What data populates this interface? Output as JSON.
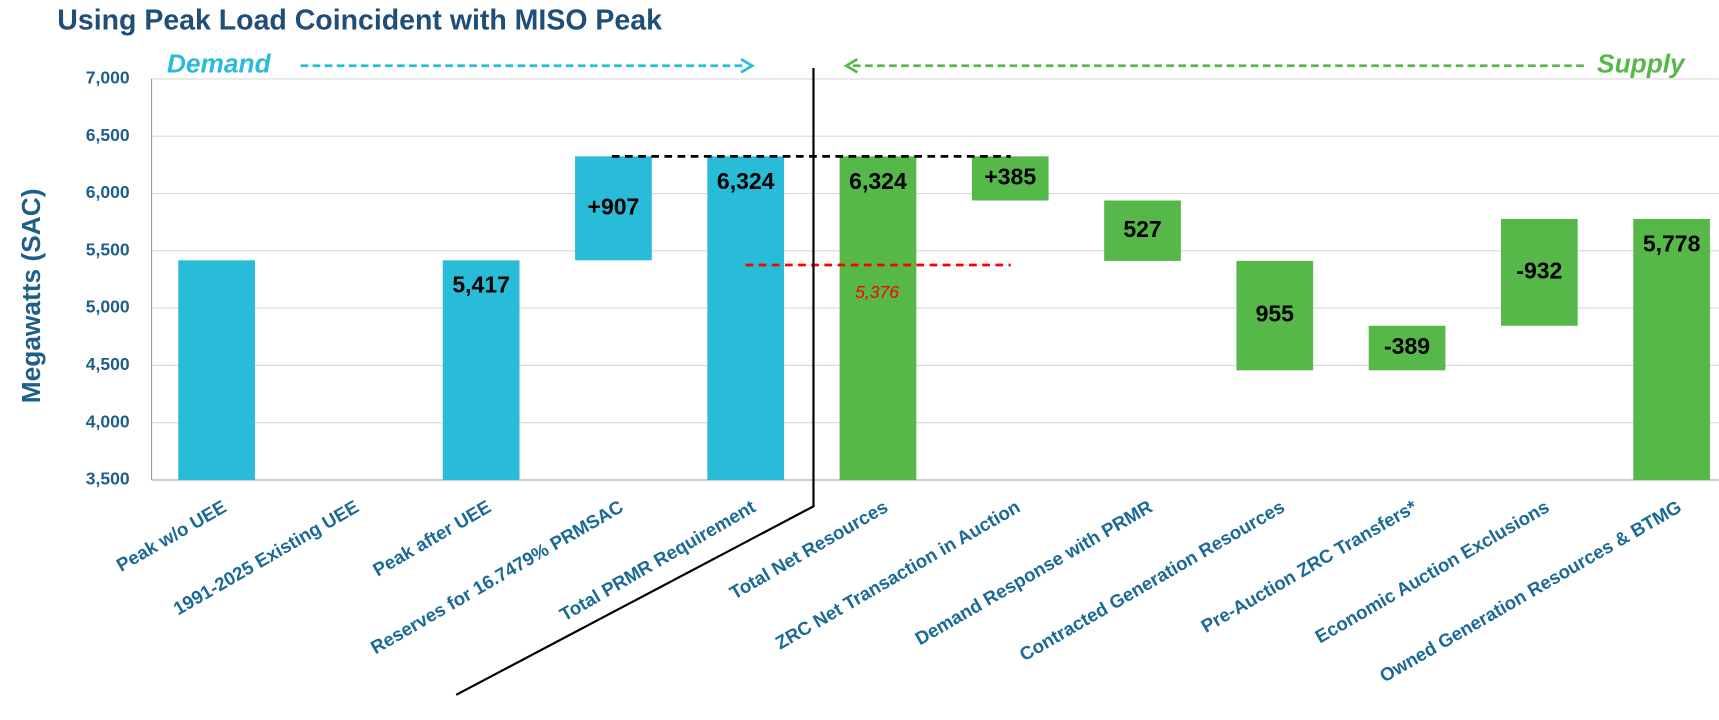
{
  "chart_data": {
    "type": "waterfall",
    "title": "Using Peak Load Coincident with MISO Peak",
    "y_label": "Megawatts (SAC)",
    "categories": [
      "Peak w/o UEE",
      "1991-2025 Existing UEE",
      "Peak after UEE",
      "Reserves for 16.7479% PRMSAC",
      "Total PRMR Requirement",
      "Total Net Resources",
      "ZRC Net Transaction in Auction",
      "Demand Response with PRMR",
      "Contracted Generation Resources",
      "Pre-Auction ZRC Transfers*",
      "Economic Auction Exclusions",
      "Owned Generation Resources & BTMG"
    ],
    "values": [
      5417,
      0,
      5417,
      907,
      6324,
      6324,
      385,
      527,
      955,
      -389,
      -932,
      5778
    ],
    "value_labels": [
      null,
      null,
      "5,417",
      "+907",
      "6,324",
      "6,324",
      "+385",
      "527",
      "955",
      "-389",
      "-932",
      "5,778"
    ],
    "measures": [
      "total",
      "relative",
      "total",
      "relative",
      "total",
      "total",
      "relative",
      "relative",
      "relative",
      "relative",
      "relative",
      "total"
    ],
    "groups": [
      {
        "name": "Demand",
        "start": 0,
        "end": 4,
        "direction": "left-to-right",
        "color": "#29bcd8"
      },
      {
        "name": "Supply",
        "start": 5,
        "end": 11,
        "direction": "right-to-left",
        "color": "#57b84a"
      }
    ],
    "reference_lines": [
      {
        "value": 6324,
        "color": "#000000"
      },
      {
        "value": 5376,
        "value_label": "5,376",
        "color": "#ff0000"
      }
    ],
    "ylim": [
      3500,
      7000
    ],
    "yticks": [
      {
        "value": 3500,
        "label": "3,500"
      },
      {
        "value": 4000,
        "label": "4,000"
      },
      {
        "value": 4500,
        "label": "4,500"
      },
      {
        "value": 5000,
        "label": "5,000"
      },
      {
        "value": 5500,
        "label": "5,500"
      },
      {
        "value": 6000,
        "label": "6,000"
      },
      {
        "value": 6500,
        "label": "6,500"
      },
      {
        "value": 7000,
        "label": "7,000"
      }
    ],
    "grid": true
  }
}
